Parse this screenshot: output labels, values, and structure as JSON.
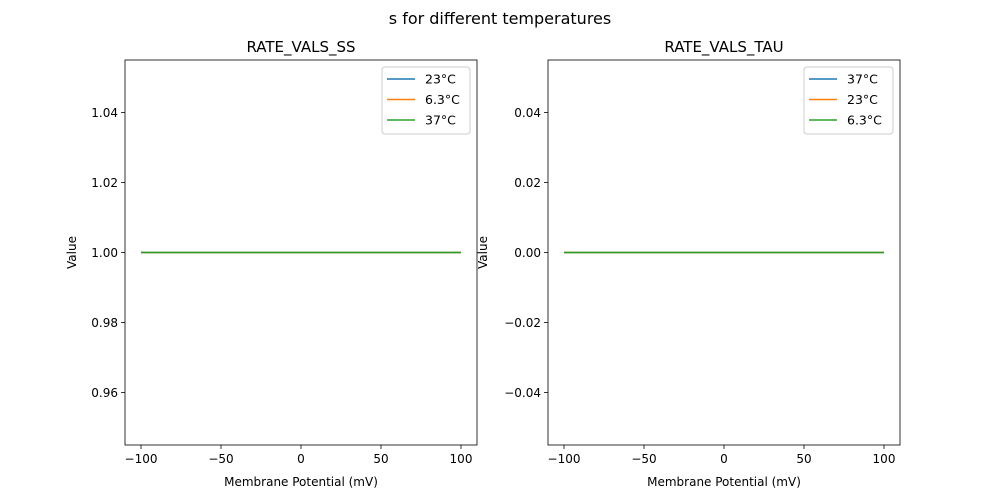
{
  "suptitle": "s for different temperatures",
  "chart_data": [
    {
      "type": "line",
      "title": "RATE_VALS_SS",
      "xlabel": "Membrane Potential (mV)",
      "ylabel": "Value",
      "xlim": [
        -110,
        110
      ],
      "ylim": [
        0.945,
        1.055
      ],
      "xticks": [
        -100,
        -50,
        0,
        50,
        100
      ],
      "xtick_labels": [
        "−100",
        "−50",
        "0",
        "50",
        "100"
      ],
      "yticks": [
        0.96,
        0.98,
        1.0,
        1.02,
        1.04
      ],
      "ytick_labels": [
        "0.96",
        "0.98",
        "1.00",
        "1.02",
        "1.04"
      ],
      "legend": "top-right",
      "series": [
        {
          "name": "23°C",
          "color": "#1f77b4",
          "x": [
            -100,
            100
          ],
          "y": [
            1.0,
            1.0
          ]
        },
        {
          "name": "6.3°C",
          "color": "#ff7f0e",
          "x": [
            -100,
            100
          ],
          "y": [
            1.0,
            1.0
          ]
        },
        {
          "name": "37°C",
          "color": "#2ca02c",
          "x": [
            -100,
            100
          ],
          "y": [
            1.0,
            1.0
          ]
        }
      ]
    },
    {
      "type": "line",
      "title": "RATE_VALS_TAU",
      "xlabel": "Membrane Potential (mV)",
      "ylabel": "Value",
      "xlim": [
        -110,
        110
      ],
      "ylim": [
        -0.055,
        0.055
      ],
      "xticks": [
        -100,
        -50,
        0,
        50,
        100
      ],
      "xtick_labels": [
        "−100",
        "−50",
        "0",
        "50",
        "100"
      ],
      "yticks": [
        -0.04,
        -0.02,
        0.0,
        0.02,
        0.04
      ],
      "ytick_labels": [
        "−0.04",
        "−0.02",
        "0.00",
        "0.02",
        "0.04"
      ],
      "legend": "top-right",
      "series": [
        {
          "name": "37°C",
          "color": "#1f77b4",
          "x": [
            -100,
            100
          ],
          "y": [
            0.0,
            0.0
          ]
        },
        {
          "name": "23°C",
          "color": "#ff7f0e",
          "x": [
            -100,
            100
          ],
          "y": [
            0.0,
            0.0
          ]
        },
        {
          "name": "6.3°C",
          "color": "#2ca02c",
          "x": [
            -100,
            100
          ],
          "y": [
            0.0,
            0.0
          ]
        }
      ]
    }
  ]
}
